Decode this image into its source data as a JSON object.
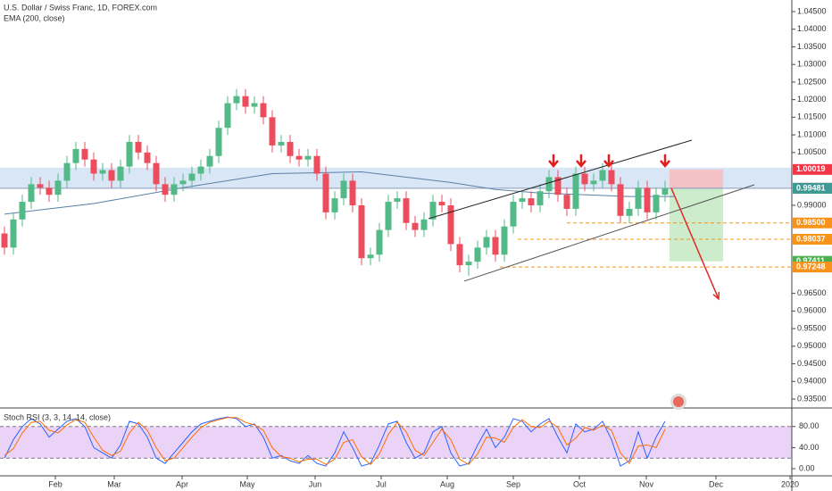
{
  "chart_data": {
    "type": "candlestick",
    "title": "U.S. Dollar / Swiss Franc, 1D, FOREX.com",
    "indicator": "EMA (200, close)",
    "ylim": [
      0.935,
      1.045
    ],
    "yticks": [
      {
        "value": 1.045,
        "label": "1.04500"
      },
      {
        "value": 1.04,
        "label": "1.04000"
      },
      {
        "value": 1.035,
        "label": "1.03500"
      },
      {
        "value": 1.03,
        "label": "1.03000"
      },
      {
        "value": 1.025,
        "label": "1.02500"
      },
      {
        "value": 1.02,
        "label": "1.02000"
      },
      {
        "value": 1.015,
        "label": "1.01500"
      },
      {
        "value": 1.01,
        "label": "1.01000"
      },
      {
        "value": 1.005,
        "label": "1.00500"
      },
      {
        "value": 0.99,
        "label": "0.99000"
      },
      {
        "value": 0.965,
        "label": "0.96500"
      },
      {
        "value": 0.96,
        "label": "0.96000"
      },
      {
        "value": 0.955,
        "label": "0.95500"
      },
      {
        "value": 0.95,
        "label": "0.95000"
      },
      {
        "value": 0.945,
        "label": "0.94500"
      },
      {
        "value": 0.94,
        "label": "0.94000"
      },
      {
        "value": 0.935,
        "label": "0.93500"
      }
    ],
    "xlim": [
      -0.5,
      88.2
    ],
    "xticks": [
      {
        "value": 5.7,
        "label": "Feb"
      },
      {
        "value": 12.3,
        "label": "Mar"
      },
      {
        "value": 19.9,
        "label": "Apr"
      },
      {
        "value": 27.2,
        "label": "May"
      },
      {
        "value": 34.8,
        "label": "Jun"
      },
      {
        "value": 42.2,
        "label": "Jul"
      },
      {
        "value": 49.6,
        "label": "Aug"
      },
      {
        "value": 57,
        "label": "Sep"
      },
      {
        "value": 64.4,
        "label": "Oct"
      },
      {
        "value": 71.9,
        "label": "Nov"
      },
      {
        "value": 79.7,
        "label": "Dec"
      },
      {
        "value": 88,
        "label": "2020"
      }
    ],
    "up_color": "#53b987",
    "down_color": "#eb4d5c",
    "open": [
      0.982,
      0.978,
      0.986,
      0.991,
      0.996,
      0.995,
      0.993,
      0.997,
      1.002,
      1.006,
      1.003,
      0.999,
      1.0,
      0.997,
      1.001,
      1.008,
      1.005,
      1.002,
      0.996,
      0.993,
      0.996,
      0.997,
      0.999,
      1.001,
      1.004,
      1.012,
      1.019,
      1.021,
      1.018,
      1.019,
      1.015,
      1.007,
      1.008,
      1.004,
      1.003,
      1.004,
      0.999,
      0.988,
      0.992,
      0.997,
      0.99,
      0.975,
      0.976,
      0.983,
      0.991,
      0.992,
      0.985,
      0.983,
      0.986,
      0.991,
      0.99,
      0.979,
      0.973,
      0.974,
      0.978,
      0.981,
      0.976,
      0.984,
      0.991,
      0.992,
      0.99,
      0.994,
      0.998,
      0.993,
      0.989,
      0.999,
      0.996,
      0.997,
      1.0,
      0.996,
      0.987,
      0.989,
      0.995,
      0.988,
      0.993
    ],
    "high": [
      0.984,
      0.988,
      0.993,
      0.998,
      0.998,
      0.997,
      0.999,
      1.004,
      1.008,
      1.008,
      1.005,
      1.002,
      1.002,
      1.003,
      1.01,
      1.01,
      1.007,
      1.004,
      0.998,
      0.998,
      0.999,
      1.001,
      1.003,
      1.006,
      1.014,
      1.021,
      1.023,
      1.023,
      1.021,
      1.021,
      1.017,
      1.01,
      1.01,
      1.006,
      1.006,
      1.006,
      1.001,
      0.994,
      0.999,
      0.999,
      0.992,
      0.978,
      0.985,
      0.993,
      0.994,
      0.994,
      0.987,
      0.988,
      0.993,
      0.993,
      0.992,
      0.981,
      0.976,
      0.98,
      0.983,
      0.983,
      0.986,
      0.993,
      0.994,
      0.994,
      0.996,
      1.0,
      1.0,
      0.995,
      1.001,
      1.001,
      0.999,
      1.002,
      1.002,
      0.998,
      0.991,
      0.997,
      0.997,
      0.995,
      0.997
    ],
    "low": [
      0.976,
      0.976,
      0.984,
      0.989,
      0.993,
      0.991,
      0.991,
      0.995,
      1.0,
      1.001,
      0.997,
      0.997,
      0.995,
      0.995,
      0.999,
      1.003,
      1.0,
      0.994,
      0.991,
      0.991,
      0.994,
      0.995,
      0.997,
      0.999,
      1.002,
      1.01,
      1.017,
      1.016,
      1.016,
      1.013,
      1.005,
      1.005,
      1.002,
      1.001,
      1.001,
      0.997,
      0.986,
      0.986,
      0.99,
      0.988,
      0.973,
      0.973,
      0.974,
      0.981,
      0.989,
      0.983,
      0.981,
      0.981,
      0.984,
      0.988,
      0.977,
      0.971,
      0.97,
      0.972,
      0.976,
      0.974,
      0.974,
      0.982,
      0.989,
      0.988,
      0.988,
      0.992,
      0.991,
      0.987,
      0.987,
      0.994,
      0.994,
      0.995,
      0.994,
      0.985,
      0.985,
      0.987,
      0.986,
      0.986,
      0.991
    ],
    "close": [
      0.978,
      0.986,
      0.991,
      0.996,
      0.995,
      0.993,
      0.997,
      1.002,
      1.006,
      1.003,
      0.999,
      1.0,
      0.997,
      1.001,
      1.008,
      1.005,
      1.002,
      0.996,
      0.993,
      0.996,
      0.997,
      0.999,
      1.001,
      1.004,
      1.012,
      1.019,
      1.021,
      1.018,
      1.019,
      1.015,
      1.007,
      1.008,
      1.004,
      1.003,
      1.004,
      0.999,
      0.988,
      0.992,
      0.997,
      0.99,
      0.975,
      0.976,
      0.983,
      0.991,
      0.992,
      0.985,
      0.983,
      0.986,
      0.991,
      0.99,
      0.979,
      0.973,
      0.974,
      0.978,
      0.981,
      0.976,
      0.984,
      0.991,
      0.992,
      0.99,
      0.994,
      0.998,
      0.993,
      0.989,
      0.999,
      0.996,
      0.997,
      1.0,
      0.996,
      0.987,
      0.989,
      0.995,
      0.988,
      0.993,
      0.99486
    ],
    "ema": {
      "color": "#5b7fa8",
      "x": [
        0,
        10,
        20,
        30,
        40,
        50,
        55,
        60,
        70,
        75
      ],
      "values": [
        0.9875,
        0.9905,
        0.995,
        0.999,
        0.9995,
        0.9965,
        0.9945,
        0.9935,
        0.9925,
        0.9925
      ]
    },
    "zone": {
      "color": "#c9dcf2",
      "from": 0.995,
      "to": 1.0007
    },
    "hline": {
      "value": 0.99486,
      "color": "#7f97b8"
    },
    "trendlines": [
      {
        "color": "#222222",
        "x": [
          47.5,
          77
        ],
        "y": [
          0.98621,
          1.00851
        ]
      },
      {
        "color": "#555555",
        "x": [
          51.5,
          84
        ],
        "y": [
          0.96847,
          0.99583
        ]
      }
    ],
    "levels": [
      {
        "value": 0.985,
        "from": 63
      },
      {
        "value": 0.98037,
        "from": 57.5
      },
      {
        "value": 0.97248,
        "from": 55.5
      }
    ],
    "level_color": "#f7931a",
    "position": {
      "x": [
        74.5,
        80.5
      ],
      "stop": 1.00019,
      "entry": 0.99486,
      "target": 0.97411,
      "stop_color": "#f4c2c6",
      "target_color": "#cdeccb"
    },
    "forecast_arrow": {
      "color": "#e02a2a",
      "x": [
        74.7,
        80
      ],
      "y": [
        0.99486,
        0.9634
      ]
    },
    "markers": {
      "color": "#e01e1e",
      "x": [
        61.5,
        64.6,
        67.7,
        74
      ],
      "y": [
        1.0027,
        1.0027,
        1.0027,
        1.0027
      ]
    },
    "price_labels": [
      {
        "value": 1.00019,
        "label": "1.00019",
        "color": "#f23645"
      },
      {
        "value": 0.99486,
        "label": "0.99486",
        "color": "#4a4a4a"
      },
      {
        "value": 0.99481,
        "label": "0.99481",
        "color": "#3f9a95"
      },
      {
        "value": 0.985,
        "label": "0.98500",
        "color": "#f7931a"
      },
      {
        "value": 0.98037,
        "label": "0.98037",
        "color": "#f7931a"
      },
      {
        "value": 0.97411,
        "label": "0.97411",
        "color": "#4caf50"
      },
      {
        "value": 0.97248,
        "label": "0.97248",
        "color": "#f7931a"
      }
    ],
    "stoch": {
      "title": "Stoch RSI (3, 3, 14, 14, close)",
      "ylim": [
        0,
        100
      ],
      "yticks": [
        {
          "value": 80,
          "label": "80.00"
        },
        {
          "value": 40,
          "label": "40.00"
        },
        {
          "value": 0,
          "label": "0.00"
        }
      ],
      "bands": [
        20,
        80
      ],
      "band_color": "#e6c8f5",
      "series": [
        {
          "color": "#2962ff",
          "values": [
            20,
            55,
            80,
            95,
            85,
            60,
            75,
            90,
            95,
            80,
            40,
            30,
            20,
            45,
            90,
            85,
            60,
            20,
            10,
            30,
            50,
            70,
            85,
            90,
            95,
            98,
            95,
            80,
            85,
            60,
            20,
            25,
            15,
            10,
            25,
            10,
            5,
            30,
            70,
            40,
            5,
            10,
            45,
            85,
            90,
            50,
            20,
            30,
            70,
            80,
            30,
            5,
            10,
            45,
            75,
            40,
            60,
            95,
            90,
            70,
            85,
            95,
            60,
            30,
            85,
            70,
            75,
            90,
            55,
            5,
            15,
            70,
            20,
            60,
            90
          ]
        },
        {
          "color": "#ff6d00",
          "values": [
            25,
            38,
            68,
            88,
            90,
            73,
            68,
            83,
            93,
            88,
            60,
            35,
            25,
            33,
            68,
            88,
            73,
            40,
            15,
            20,
            40,
            60,
            78,
            88,
            93,
            97,
            97,
            88,
            83,
            73,
            40,
            23,
            20,
            13,
            18,
            18,
            8,
            18,
            50,
            55,
            23,
            8,
            28,
            65,
            88,
            70,
            35,
            25,
            50,
            75,
            55,
            18,
            8,
            28,
            60,
            58,
            50,
            78,
            93,
            80,
            78,
            90,
            78,
            45,
            58,
            78,
            73,
            83,
            73,
            30,
            10,
            43,
            45,
            40,
            75
          ]
        }
      ]
    }
  }
}
